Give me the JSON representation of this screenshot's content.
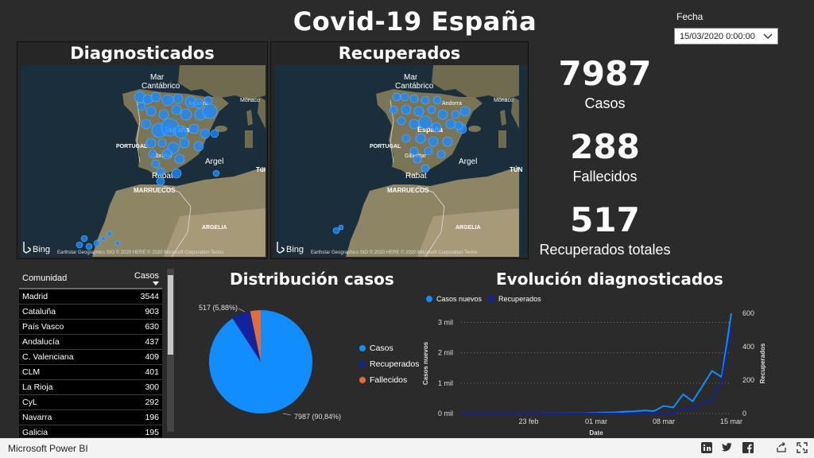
{
  "title": "Covid-19 España",
  "slicer": {
    "label": "Fecha",
    "value": "15/03/2020 0:00:00"
  },
  "maps": [
    {
      "title": "Diagnosticados",
      "labels": {
        "sea": "Mar",
        "sea2": "Cantábrico",
        "andorra": "Andorra",
        "monaco": "Mónaco",
        "espana": "España",
        "portugal": "PORTUGAL",
        "gibraltar": "Gibraltar",
        "argel": "Argel",
        "tunez": "Túnez",
        "rabat": "Rabat",
        "marruecos": "MARRUECOS",
        "argelia": "ARGELIA"
      },
      "bing": "Bing",
      "attribution": "Earthstar Geographics SIO © 2020 HERE © 2020 Microsoft Corporation Terms"
    },
    {
      "title": "Recuperados",
      "labels": {
        "sea": "Mar",
        "sea2": "Cantábrico",
        "andorra": "Andorra",
        "monaco": "Mónaco",
        "espana": "España",
        "portugal": "PORTUGAL",
        "gibraltar": "Gibraltar",
        "argel": "Argel",
        "tunez": "TÚN",
        "rabat": "Rabat",
        "marruecos": "MARRUECOS",
        "argelia": "ARGELIA"
      },
      "bing": "Bing",
      "attribution": "Earthstar Geographics SIO © 2020 HERE © 2020 Microsoft Corporation Terms"
    }
  ],
  "kpis": [
    {
      "value": "7987",
      "label": "Casos"
    },
    {
      "value": "288",
      "label": "Fallecidos"
    },
    {
      "value": "517",
      "label": "Recuperados totales"
    }
  ],
  "table": {
    "headers": [
      "Comunidad",
      "Casos"
    ],
    "rows": [
      [
        "Madrid",
        "3544"
      ],
      [
        "Cataluña",
        "903"
      ],
      [
        "País Vasco",
        "630"
      ],
      [
        "Andalucía",
        "437"
      ],
      [
        "C. Valenciana",
        "409"
      ],
      [
        "CLM",
        "401"
      ],
      [
        "La Rioja",
        "300"
      ],
      [
        "CyL",
        "292"
      ],
      [
        "Navarra",
        "196"
      ],
      [
        "Galicia",
        "195"
      ]
    ]
  },
  "pie": {
    "title": "Distribución casos",
    "slices": [
      {
        "name": "Casos",
        "value": 7987,
        "label": "7987 (90,84%)",
        "color": "#118dff"
      },
      {
        "name": "Recuperados",
        "value": 517,
        "label": "517 (5,88%)",
        "color": "#12239e"
      },
      {
        "name": "Fallecidos",
        "value": 288,
        "label": "",
        "color": "#e66c37"
      }
    ]
  },
  "chart_data": {
    "type": "line",
    "title": "Evolución diagnosticados",
    "legend": [
      "Casos nuevos",
      "Recuperados"
    ],
    "xlabel": "Date",
    "ylabel": "Casos nuevos",
    "y2label": "Recuperados",
    "x_ticks": [
      "23 feb",
      "01 mar",
      "08 mar",
      "15 mar"
    ],
    "y_ticks": [
      "0 mil",
      "1 mil",
      "2 mil",
      "3 mil"
    ],
    "y2_ticks": [
      "0",
      "200",
      "400",
      "600"
    ],
    "ylim": [
      0,
      3300
    ],
    "y2lim": [
      0,
      600
    ],
    "x": [
      "16 feb",
      "17 feb",
      "18 feb",
      "19 feb",
      "20 feb",
      "21 feb",
      "22 feb",
      "23 feb",
      "24 feb",
      "25 feb",
      "26 feb",
      "27 feb",
      "28 feb",
      "29 feb",
      "01 mar",
      "02 mar",
      "03 mar",
      "04 mar",
      "05 mar",
      "06 mar",
      "07 mar",
      "08 mar",
      "09 mar",
      "10 mar",
      "11 mar",
      "12 mar",
      "13 mar",
      "14 mar",
      "15 mar"
    ],
    "series": [
      {
        "name": "Casos nuevos",
        "color": "#118dff",
        "axis": "left",
        "values": [
          0,
          0,
          0,
          0,
          0,
          0,
          0,
          0,
          0,
          2,
          3,
          5,
          8,
          10,
          20,
          30,
          40,
          60,
          70,
          100,
          80,
          250,
          200,
          630,
          400,
          900,
          1400,
          1200,
          3300
        ]
      },
      {
        "name": "Recuperados",
        "color": "#12239e",
        "axis": "right",
        "values": [
          0,
          0,
          0,
          0,
          0,
          0,
          0,
          0,
          0,
          0,
          0,
          0,
          0,
          0,
          0,
          0,
          0,
          0,
          0,
          0,
          0,
          0,
          0,
          30,
          30,
          60,
          80,
          190,
          517
        ]
      }
    ]
  },
  "footer": {
    "brand": "Microsoft Power BI"
  },
  "icons": [
    "chevron-down-icon",
    "linkedin-icon",
    "twitter-icon",
    "facebook-icon",
    "share-icon",
    "fullscreen-icon"
  ]
}
